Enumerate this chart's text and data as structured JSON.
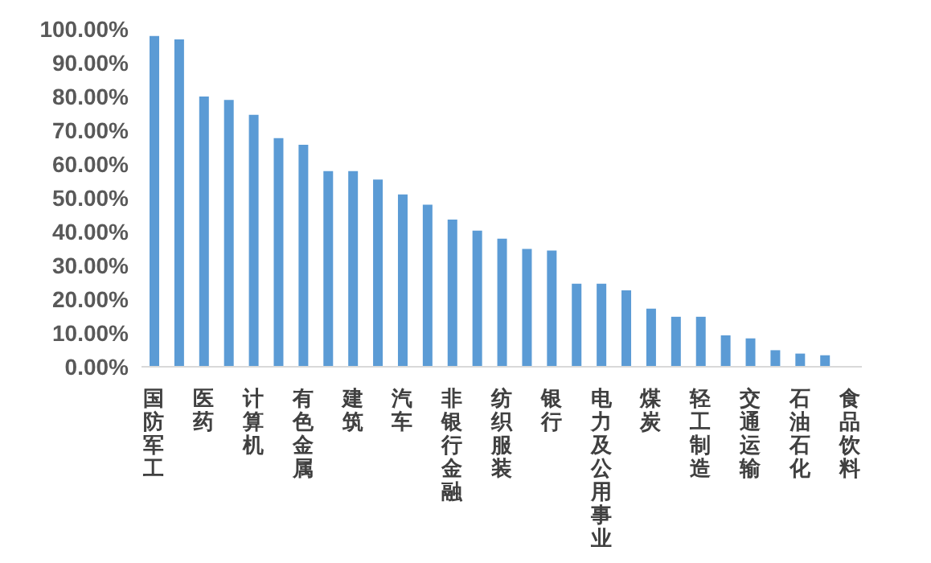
{
  "chart_data": {
    "type": "bar",
    "categories": [
      "国防军工",
      null,
      "医药",
      null,
      "计算机",
      null,
      "有色金属",
      null,
      "建筑",
      null,
      "汽车",
      null,
      "非银行金融",
      null,
      "纺织服装",
      null,
      "银行",
      null,
      "电力及公用事业",
      null,
      "煤炭",
      null,
      "轻工制造",
      null,
      "交通运输",
      null,
      "石油石化",
      null,
      "食品饮料"
    ],
    "values": [
      97.9,
      96.9,
      80.0,
      79.0,
      74.6,
      67.7,
      65.7,
      57.9,
      57.9,
      55.4,
      51.0,
      48.0,
      43.6,
      40.3,
      37.9,
      34.9,
      34.4,
      24.6,
      24.6,
      22.6,
      17.2,
      14.8,
      14.8,
      9.3,
      8.4,
      4.9,
      3.9,
      3.4,
      0
    ],
    "color": "#5b9bd5",
    "ylim": [
      0,
      100
    ],
    "yticks": [
      {
        "value": 0,
        "label": "0.00%"
      },
      {
        "value": 10,
        "label": "10.00%"
      },
      {
        "value": 20,
        "label": "20.00%"
      },
      {
        "value": 30,
        "label": "30.00%"
      },
      {
        "value": 40,
        "label": "40.00%"
      },
      {
        "value": 50,
        "label": "50.00%"
      },
      {
        "value": 60,
        "label": "60.00%"
      },
      {
        "value": 70,
        "label": "70.00%"
      },
      {
        "value": 80,
        "label": "80.00%"
      },
      {
        "value": 90,
        "label": "90.00%"
      },
      {
        "value": 100,
        "label": "100.00%"
      }
    ],
    "grid": false,
    "legend": false
  }
}
